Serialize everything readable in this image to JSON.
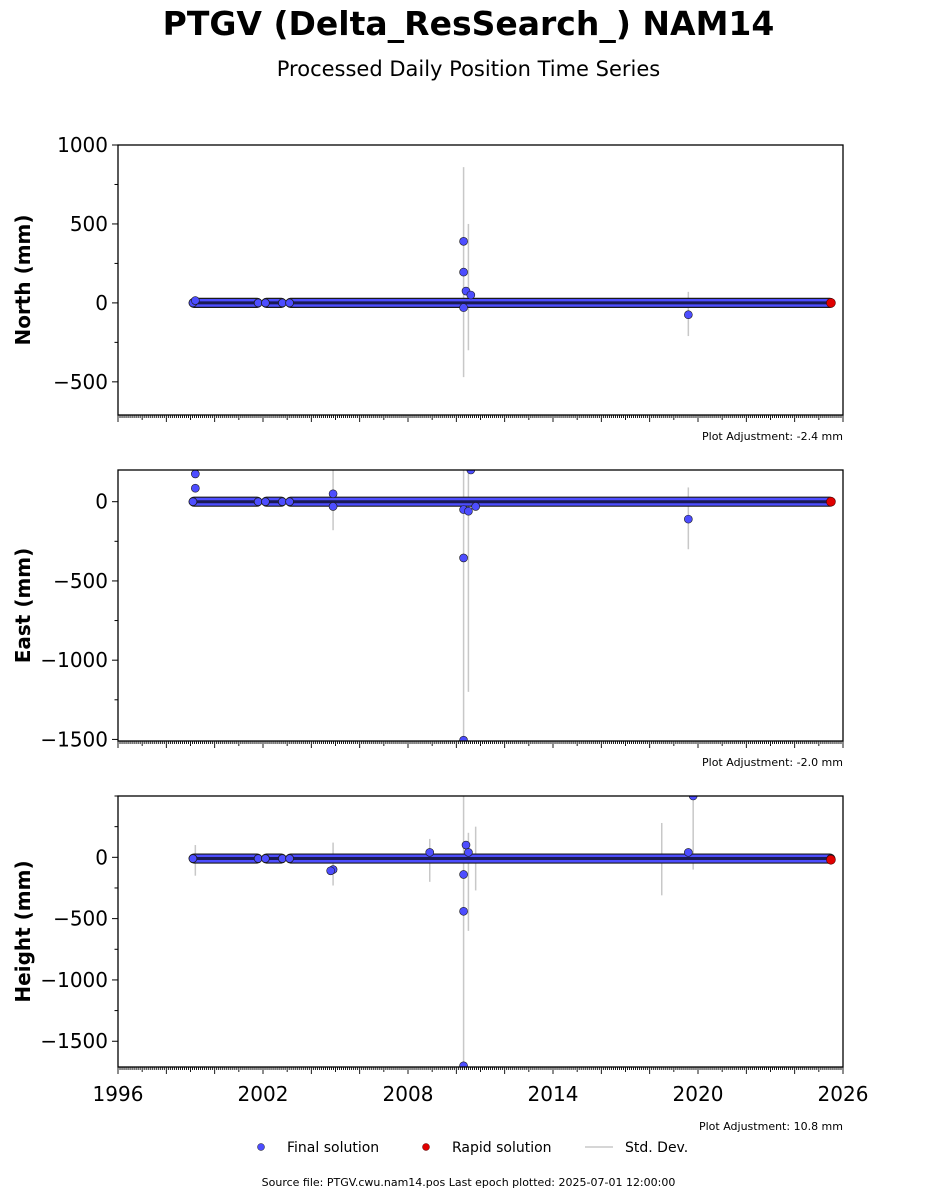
{
  "title": "PTGV (Delta_ResSearch_) NAM14",
  "subtitle": "Processed Daily Position Time Series",
  "footer": {
    "source_label": "Source file:",
    "source_file": "PTGV.cwu.nam14.pos",
    "last_epoch_label": "Last epoch plotted:",
    "last_epoch": "2025-07-01 12:00:00"
  },
  "colors": {
    "final": "#4d4dff",
    "rapid": "#e00000",
    "stddev": "#c8c8c8",
    "marker_edge": "#1a1a1a"
  },
  "chart_data": [
    {
      "type": "scatter",
      "panel": "north",
      "ylabel": "North (mm)",
      "ylim": [
        -710,
        1000
      ],
      "yticks": [
        1000,
        500,
        0,
        -500
      ],
      "ytick_labels": [
        "1000",
        "500",
        "0",
        "−500"
      ],
      "xlim": [
        1996,
        2026
      ],
      "adjustment": "Plot Adjustment: -2.4 mm",
      "gaps": [
        [
          2001.8,
          2002.1
        ],
        [
          2002.8,
          2003.1
        ]
      ],
      "data_start": 1999.1,
      "data_end": 2025.5,
      "baseline": 0,
      "rapid": [
        [
          2025.5,
          0
        ]
      ],
      "outliers": [
        [
          2010.3,
          390
        ],
        [
          2010.3,
          195
        ],
        [
          2010.4,
          75
        ],
        [
          2010.6,
          50
        ],
        [
          2010.3,
          -30
        ],
        [
          2019.6,
          -75
        ],
        [
          1999.2,
          15
        ]
      ],
      "stddev_bars": [
        [
          2010.3,
          -470,
          860
        ],
        [
          2010.5,
          -300,
          500
        ],
        [
          2019.6,
          -210,
          70
        ]
      ]
    },
    {
      "type": "scatter",
      "panel": "east",
      "ylabel": "East (mm)",
      "ylim": [
        -1510,
        200
      ],
      "yticks": [
        0,
        -500,
        -1000,
        -1500
      ],
      "ytick_labels": [
        "0",
        "−500",
        "−1000",
        "−1500"
      ],
      "xlim": [
        1996,
        2026
      ],
      "adjustment": "Plot Adjustment: -2.0 mm",
      "gaps": [
        [
          2001.8,
          2002.1
        ],
        [
          2002.8,
          2003.1
        ]
      ],
      "data_start": 1999.1,
      "data_end": 2025.5,
      "baseline": 0,
      "rapid": [
        [
          2025.5,
          0
        ]
      ],
      "outliers": [
        [
          1999.2,
          175
        ],
        [
          1999.2,
          85
        ],
        [
          2004.9,
          50
        ],
        [
          2004.9,
          -30
        ],
        [
          2010.3,
          -355
        ],
        [
          2010.3,
          -1505
        ],
        [
          2010.3,
          -50
        ],
        [
          2010.5,
          -60
        ],
        [
          2010.6,
          200
        ],
        [
          2010.8,
          -30
        ],
        [
          2019.6,
          -110
        ]
      ],
      "stddev_bars": [
        [
          2004.9,
          -180,
          200
        ],
        [
          2010.3,
          -1500,
          200
        ],
        [
          2010.5,
          -1200,
          200
        ],
        [
          2019.6,
          -300,
          90
        ]
      ]
    },
    {
      "type": "scatter",
      "panel": "height",
      "ylabel": "Height (mm)",
      "ylim": [
        -1710,
        500
      ],
      "yticks": [
        0,
        -500,
        -1000,
        -1500
      ],
      "ytick_labels": [
        "0",
        "−500",
        "−1000",
        "−1500"
      ],
      "xlim": [
        1996,
        2026
      ],
      "xticks": [
        1996,
        2002,
        2008,
        2014,
        2020,
        2026
      ],
      "adjustment": "Plot Adjustment: 10.8 mm",
      "gaps": [
        [
          2001.8,
          2002.1
        ],
        [
          2002.8,
          2003.1
        ]
      ],
      "data_start": 1999.1,
      "data_end": 2025.5,
      "baseline": -10,
      "rapid": [
        [
          2025.5,
          -20
        ]
      ],
      "outliers": [
        [
          2004.9,
          -100
        ],
        [
          2004.8,
          -110
        ],
        [
          2010.3,
          -140
        ],
        [
          2010.3,
          -440
        ],
        [
          2010.3,
          -1700
        ],
        [
          2010.4,
          100
        ],
        [
          2010.5,
          40
        ],
        [
          2019.6,
          40
        ],
        [
          2019.8,
          500
        ],
        [
          2008.9,
          40
        ]
      ],
      "stddev_bars": [
        [
          1999.2,
          -150,
          100
        ],
        [
          2004.9,
          -230,
          120
        ],
        [
          2008.9,
          -200,
          150
        ],
        [
          2010.3,
          -1710,
          500
        ],
        [
          2010.5,
          -600,
          200
        ],
        [
          2010.8,
          -270,
          250
        ],
        [
          2018.5,
          -310,
          280
        ],
        [
          2019.8,
          -100,
          500
        ]
      ]
    }
  ],
  "legend": {
    "final": "Final solution",
    "rapid": "Rapid solution",
    "stddev": "Std. Dev."
  }
}
